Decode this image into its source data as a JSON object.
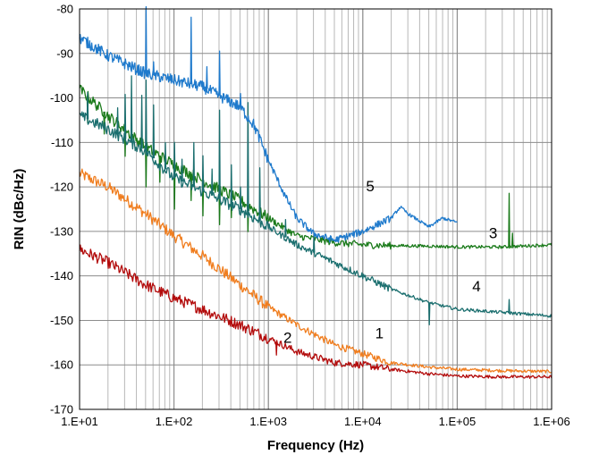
{
  "chart_data": {
    "type": "line",
    "xlabel": "Frequency (Hz)",
    "ylabel": "RIN (dBc/Hz)",
    "x_scale": "log",
    "xlim": [
      10,
      1000000
    ],
    "ylim": [
      -170,
      -80
    ],
    "x_ticks": [
      10,
      100,
      1000,
      10000,
      100000,
      1000000
    ],
    "x_tick_labels": [
      "1.E+01",
      "1.E+02",
      "1.E+03",
      "1.E+04",
      "1.E+05",
      "1.E+06"
    ],
    "y_ticks": [
      -170,
      -160,
      -150,
      -140,
      -130,
      -120,
      -110,
      -100,
      -90,
      -80
    ],
    "y_tick_labels": [
      "-170",
      "-160",
      "-150",
      "-140",
      "-130",
      "-120",
      "-110",
      "-100",
      "-90",
      "-80"
    ],
    "grid": true,
    "legend": "none",
    "series": [
      {
        "label": "1",
        "color": "#F07D1E",
        "points": [
          [
            10,
            -117
          ],
          [
            20,
            -120
          ],
          [
            50,
            -126
          ],
          [
            100,
            -131
          ],
          [
            200,
            -135.5
          ],
          [
            500,
            -142
          ],
          [
            1000,
            -147
          ],
          [
            2000,
            -151
          ],
          [
            5000,
            -155.5
          ],
          [
            10000,
            -157.5
          ],
          [
            20000,
            -159.5
          ],
          [
            50000,
            -160.5
          ],
          [
            100000,
            -161
          ],
          [
            300000,
            -161.3
          ],
          [
            1000000,
            -161.5
          ]
        ]
      },
      {
        "label": "2",
        "color": "#B30C0C",
        "points": [
          [
            10,
            -134
          ],
          [
            20,
            -137
          ],
          [
            50,
            -142
          ],
          [
            100,
            -145
          ],
          [
            200,
            -147.5
          ],
          [
            500,
            -151
          ],
          [
            1000,
            -154
          ],
          [
            2000,
            -157
          ],
          [
            5000,
            -159.5
          ],
          [
            10000,
            -160
          ],
          [
            20000,
            -161
          ],
          [
            50000,
            -162
          ],
          [
            100000,
            -162.5
          ],
          [
            300000,
            -162.7
          ],
          [
            1000000,
            -162.7
          ]
        ],
        "spikes": [
          [
            1200,
            -3
          ]
        ]
      },
      {
        "label": "3",
        "color": "#1A7A1A",
        "points": [
          [
            10,
            -98
          ],
          [
            20,
            -104
          ],
          [
            50,
            -111
          ],
          [
            100,
            -115
          ],
          [
            200,
            -118.5
          ],
          [
            500,
            -123
          ],
          [
            1000,
            -127
          ],
          [
            2000,
            -131
          ],
          [
            5000,
            -132.5
          ],
          [
            10000,
            -133
          ],
          [
            20000,
            -133.2
          ],
          [
            50000,
            -133.3
          ],
          [
            100000,
            -133.5
          ],
          [
            300000,
            -133.5
          ],
          [
            1000000,
            -133
          ]
        ],
        "spikes": [
          [
            12,
            -6
          ],
          [
            18,
            -5
          ],
          [
            30,
            -6
          ],
          [
            50,
            -9
          ],
          [
            70,
            -6
          ],
          [
            100,
            -10
          ],
          [
            150,
            -6
          ],
          [
            200,
            -8
          ],
          [
            300,
            -8
          ],
          [
            400,
            -5
          ],
          [
            600,
            -6
          ],
          [
            350000,
            12
          ],
          [
            380000,
            3
          ]
        ]
      },
      {
        "label": "4",
        "color": "#1A6E6E",
        "points": [
          [
            10,
            -104
          ],
          [
            20,
            -107
          ],
          [
            50,
            -112
          ],
          [
            100,
            -118
          ],
          [
            200,
            -121
          ],
          [
            500,
            -125
          ],
          [
            1000,
            -129
          ],
          [
            2000,
            -133
          ],
          [
            5000,
            -137
          ],
          [
            10000,
            -140
          ],
          [
            20000,
            -143
          ],
          [
            50000,
            -146
          ],
          [
            100000,
            -147.5
          ],
          [
            300000,
            -148.2
          ],
          [
            1000000,
            -149
          ]
        ],
        "spikes": [
          [
            12,
            6
          ],
          [
            25,
            6
          ],
          [
            30,
            10
          ],
          [
            35,
            15
          ],
          [
            45,
            12
          ],
          [
            50,
            16
          ],
          [
            60,
            12
          ],
          [
            80,
            6
          ],
          [
            100,
            8
          ],
          [
            120,
            5
          ],
          [
            160,
            10
          ],
          [
            200,
            8
          ],
          [
            250,
            6
          ],
          [
            300,
            20
          ],
          [
            400,
            9
          ],
          [
            500,
            5
          ],
          [
            600,
            25
          ],
          [
            800,
            12
          ],
          [
            1500,
            4
          ],
          [
            3000,
            4
          ],
          [
            50000,
            -5
          ],
          [
            350000,
            3
          ]
        ]
      },
      {
        "label": "5",
        "color": "#1F7ACC",
        "points": [
          [
            10,
            -86.5
          ],
          [
            20,
            -90.5
          ],
          [
            50,
            -94.5
          ],
          [
            100,
            -96
          ],
          [
            200,
            -97.5
          ],
          [
            500,
            -102
          ],
          [
            700,
            -106
          ],
          [
            1000,
            -114
          ],
          [
            1500,
            -122
          ],
          [
            2000,
            -127
          ],
          [
            3000,
            -130.5
          ],
          [
            5000,
            -132
          ],
          [
            10000,
            -130
          ],
          [
            20000,
            -127
          ],
          [
            25000,
            -124.5
          ],
          [
            30000,
            -126
          ],
          [
            50000,
            -129
          ],
          [
            70000,
            -127
          ],
          [
            100000,
            -128
          ]
        ],
        "spikes": [
          [
            50,
            15
          ],
          [
            60,
            3
          ],
          [
            150,
            15
          ],
          [
            220,
            5
          ],
          [
            300,
            10
          ],
          [
            500,
            3
          ]
        ]
      }
    ],
    "labels": [
      {
        "text": "1",
        "x": 15000,
        "y": -154
      },
      {
        "text": "2",
        "x": 1600,
        "y": -155
      },
      {
        "text": "3",
        "x": 240000,
        "y": -131.5
      },
      {
        "text": "4",
        "x": 160000,
        "y": -143.5
      },
      {
        "text": "5",
        "x": 12000,
        "y": -121
      }
    ]
  }
}
